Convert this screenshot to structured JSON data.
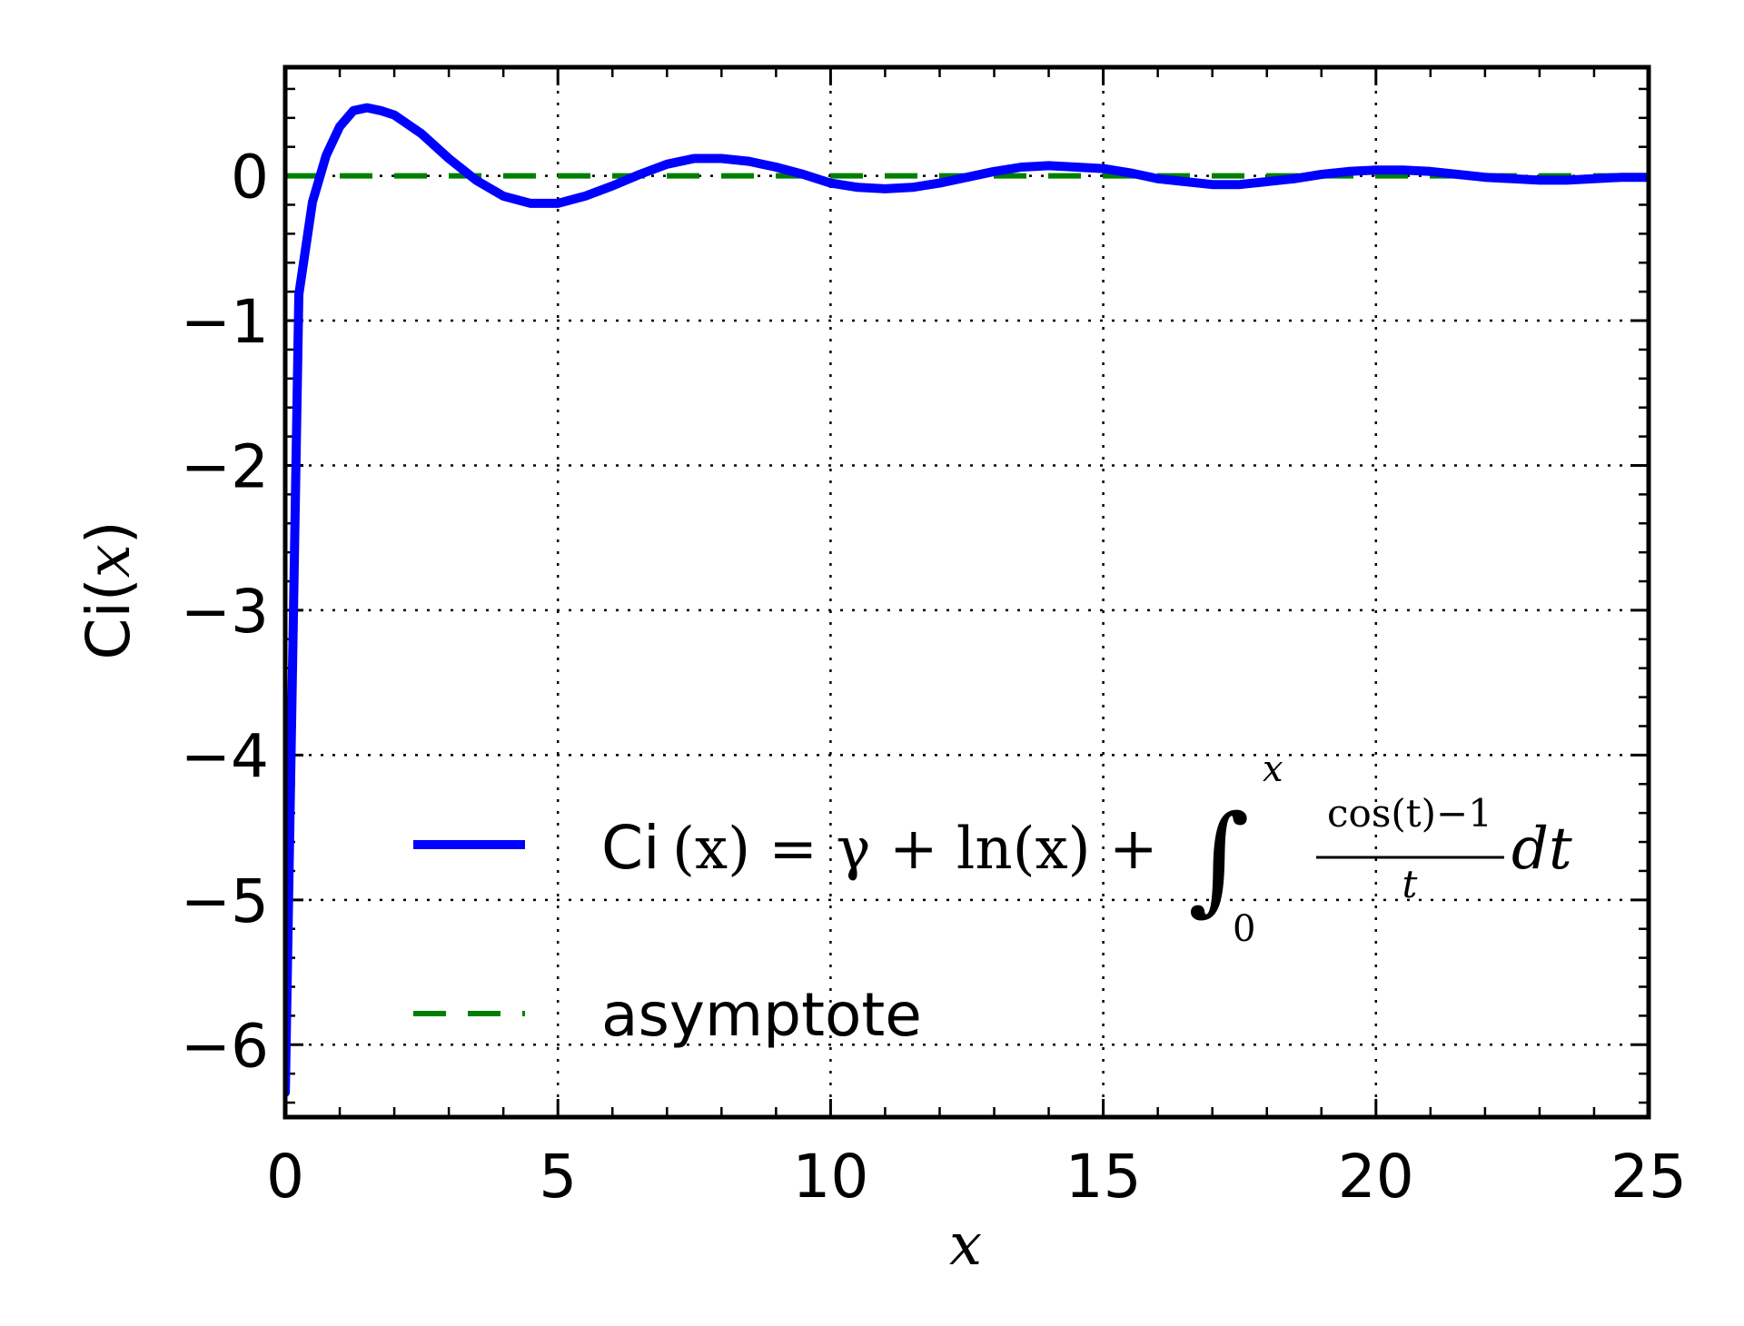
{
  "chart_data": {
    "type": "line",
    "xlabel": "x",
    "ylabel": {
      "prefix": "Ci(",
      "var": "x",
      "suffix": ")"
    },
    "xlim": [
      0,
      25
    ],
    "ylim": [
      -6.5,
      0.75
    ],
    "xticks": [
      0,
      5,
      10,
      15,
      20,
      25
    ],
    "xtick_labels": [
      "0",
      "5",
      "10",
      "15",
      "20",
      "25"
    ],
    "yticks": [
      0,
      -1,
      -2,
      -3,
      -4,
      -5,
      -6
    ],
    "ytick_labels": [
      "0",
      "−1",
      "−2",
      "−3",
      "−4",
      "−5",
      "−6"
    ],
    "grid": true,
    "legend_position": "lower-left",
    "series": [
      {
        "name": "Ci(x) = γ + ln(x) + ∫₀ˣ (cos(t)−1)/t dt",
        "color": "#0000ff",
        "style": "solid",
        "x": [
          0.001,
          0.25,
          0.5,
          0.75,
          1.0,
          1.25,
          1.5,
          1.75,
          2.0,
          2.5,
          3.0,
          3.5,
          4.0,
          4.5,
          5.0,
          5.5,
          6.0,
          6.5,
          7.0,
          7.5,
          8.0,
          8.5,
          9.0,
          9.5,
          10.0,
          10.5,
          11.0,
          11.5,
          12.0,
          12.5,
          13.0,
          13.5,
          14.0,
          14.5,
          15.0,
          15.5,
          16.0,
          16.5,
          17.0,
          17.5,
          18.0,
          18.5,
          19.0,
          19.5,
          20.0,
          20.5,
          21.0,
          21.5,
          22.0,
          22.5,
          23.0,
          23.5,
          24.0,
          24.5,
          25.0
        ],
        "y": [
          -6.33,
          -0.82,
          -0.18,
          0.14,
          0.34,
          0.45,
          0.47,
          0.45,
          0.42,
          0.29,
          0.12,
          -0.03,
          -0.14,
          -0.19,
          -0.19,
          -0.14,
          -0.07,
          0.01,
          0.08,
          0.12,
          0.12,
          0.1,
          0.06,
          0.01,
          -0.05,
          -0.08,
          -0.09,
          -0.08,
          -0.05,
          -0.01,
          0.03,
          0.06,
          0.07,
          0.06,
          0.05,
          0.02,
          -0.02,
          -0.04,
          -0.06,
          -0.06,
          -0.04,
          -0.02,
          0.01,
          0.03,
          0.04,
          0.04,
          0.03,
          0.01,
          -0.01,
          -0.02,
          -0.03,
          -0.03,
          -0.02,
          -0.01,
          -0.01
        ]
      },
      {
        "name": "asymptote",
        "color": "#008000",
        "style": "dashed",
        "x": [
          0,
          25
        ],
        "y": [
          0,
          0
        ]
      }
    ],
    "legend": {
      "entries": [
        {
          "label_parts": {
            "ci": "Ci",
            "lhs": "(x) = γ + ln(x) + ",
            "integral": "∫",
            "upper": "x",
            "lower": "0",
            "numerator": "cos(t)−1",
            "denominator": "t",
            "dt": "dt"
          }
        },
        {
          "label": "asymptote"
        }
      ]
    }
  }
}
